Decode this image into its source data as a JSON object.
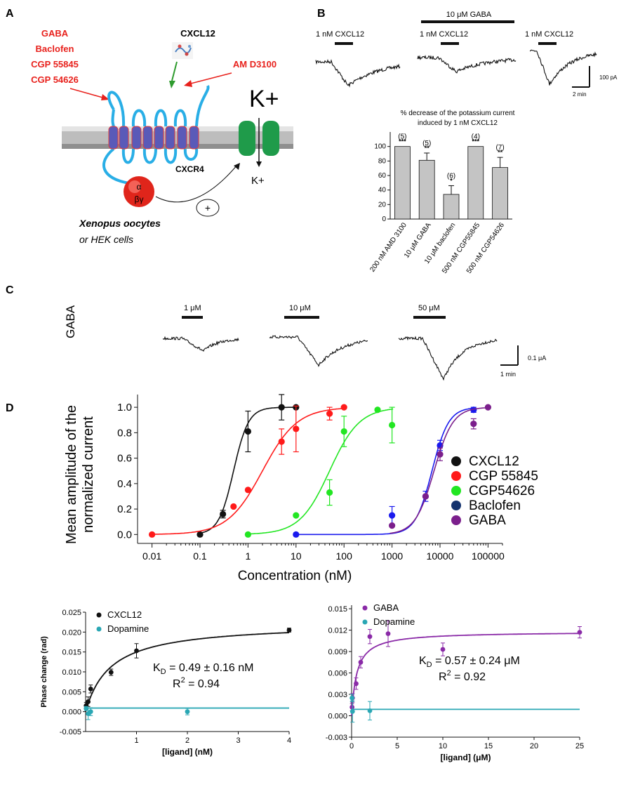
{
  "panel_labels": {
    "a": "A",
    "b": "B",
    "c": "C",
    "d": "D"
  },
  "panel_a": {
    "ligands": [
      "GABA",
      "Baclofen",
      "CGP 55845",
      "CGP 54626"
    ],
    "cxcl12": "CXCL12",
    "amd": "AM D3100",
    "k_plus_large": "K+",
    "k_plus_small": "K+",
    "receptor": "CXCR4",
    "g_alpha": "α",
    "g_betagamma": "βγ",
    "plus": "+",
    "cells_line1": "Xenopus oocytes",
    "cells_line2": "or HEK cells",
    "colors": {
      "ligand_text": "#e8211c",
      "membrane": "#b6b6b6",
      "receptor": "#29aee6",
      "channel": "#1f9b4a",
      "gprotein": "#e0251b"
    }
  },
  "panel_b": {
    "trace_label_1": "1 nM CXCL12",
    "trace_label_2": "1 nM CXCL12",
    "trace_label_3": "1 nM CXCL12",
    "gaba_bar_label": "10  μM GABA",
    "scale_y": "100 pA",
    "scale_x": "2 min"
  },
  "panel_c": {
    "side_label": "GABA",
    "doses": [
      "1 μM",
      "10  μM",
      "50  μM"
    ],
    "scale_y": "0.1 μA",
    "scale_x": "1 min"
  },
  "chart_data": [
    {
      "id": "b_bar",
      "type": "bar",
      "title": "% decrease of the potassium current induced by 1 nM CXCL12",
      "categories": [
        "200 nM AMD 3100",
        "10 μM GABA",
        "10 μM baclofen",
        "500 nM CGP55845",
        "500 nM CGP54626"
      ],
      "values": [
        100,
        81,
        34,
        100,
        71
      ],
      "errors": [
        0,
        10,
        12,
        0,
        14
      ],
      "n_labels": [
        "(5)",
        "(5)",
        "(6)",
        "(4)",
        "(7)"
      ],
      "significance": [
        "***",
        "**",
        "*",
        "***",
        "**"
      ],
      "yticks": [
        "0",
        "20",
        "40",
        "60",
        "80",
        "100"
      ],
      "ylim": [
        0,
        120
      ],
      "bar_color": "#c4c4c4"
    },
    {
      "id": "d_dose",
      "type": "scatter",
      "xscale": "log",
      "ylabel_line1": "Mean amplitude of the",
      "ylabel_line2": "normalized current",
      "xlabel": "Concentration (nM)",
      "xticks": [
        "0.01",
        "0.1",
        "1",
        "10",
        "100",
        "1000",
        "10000",
        "100000"
      ],
      "yticks": [
        "0.0",
        "0.2",
        "0.4",
        "0.6",
        "0.8",
        "1.0"
      ],
      "xlim": [
        0.005,
        200000
      ],
      "ylim": [
        -0.07,
        1.1
      ],
      "legend_position": "right",
      "series": [
        {
          "name": "CXCL12",
          "color": "#111111",
          "x": [
            0.1,
            0.3,
            1,
            5,
            10
          ],
          "y": [
            0.0,
            0.16,
            0.81,
            1.0,
            1.0
          ],
          "err": [
            0,
            0.03,
            0.16,
            0.1,
            0
          ],
          "ec50": 0.5,
          "hill": 2.8
        },
        {
          "name": "CGP 55845",
          "color": "#ff1a1a",
          "x": [
            0.01,
            0.5,
            1,
            5,
            10,
            50,
            100
          ],
          "y": [
            0.0,
            0.22,
            0.35,
            0.73,
            0.83,
            0.95,
            1.0
          ],
          "err": [
            0,
            0,
            0,
            0.1,
            0.18,
            0.05,
            0
          ],
          "ec50": 2.0,
          "hill": 1.2
        },
        {
          "name": "CGP54626",
          "color": "#22e622",
          "x": [
            1,
            10,
            50,
            100,
            500,
            1000
          ],
          "y": [
            0.0,
            0.15,
            0.33,
            0.81,
            0.98,
            0.86
          ],
          "err": [
            0,
            0,
            0.1,
            0.12,
            0,
            0.14
          ],
          "ec50": 50,
          "hill": 1.4
        },
        {
          "name": "Baclofen",
          "color": "#1a1aee",
          "legend_color": "#14336e",
          "x": [
            10,
            1000,
            5000,
            10000,
            50000
          ],
          "y": [
            0.0,
            0.15,
            0.3,
            0.7,
            0.98
          ],
          "err": [
            0,
            0.07,
            0.04,
            0.04,
            0.02
          ],
          "ec50": 6800,
          "hill": 2.5
        },
        {
          "name": "GABA",
          "color": "#7b1f8c",
          "x": [
            1000,
            5000,
            10000,
            50000,
            100000
          ],
          "y": [
            0.07,
            0.3,
            0.63,
            0.87,
            1.0
          ],
          "err": [
            0,
            0,
            0.05,
            0.04,
            0
          ],
          "ec50": 7500,
          "hill": 2.2
        }
      ]
    },
    {
      "id": "e_left",
      "type": "scatter",
      "ylabel": "Phase change (rad)",
      "xlabel": "[ligand] (nM)",
      "xticks": [
        "1",
        "2",
        "3",
        "4"
      ],
      "yticks": [
        "-0.005",
        "0.000",
        "0.005",
        "0.010",
        "0.015",
        "0.020",
        "0.025"
      ],
      "xlim": [
        0,
        4
      ],
      "ylim": [
        -0.005,
        0.025
      ],
      "kd_text": "K",
      "kd_sub": "D",
      "kd_value": " = 0.49 ± 0.16 nM",
      "r2_base": "R",
      "r2_sup": "2",
      "r2_value": " = 0.94",
      "fit": {
        "bmax": 0.0223,
        "kd": 0.49
      },
      "series": [
        {
          "name": "CXCL12",
          "color": "#111111",
          "x": [
            0.01,
            0.05,
            0.1,
            0.5,
            1,
            4
          ],
          "y": [
            0.0015,
            0.0025,
            0.0057,
            0.0099,
            0.0153,
            0.0205
          ],
          "err": [
            0.0008,
            0.0012,
            0.001,
            0.0008,
            0.0018,
            0.0005
          ]
        },
        {
          "name": "Dopamine",
          "color": "#2aa7b4",
          "x": [
            0.01,
            0.05,
            0.1,
            2
          ],
          "y": [
            0.0008,
            -0.0005,
            0.0,
            0.0
          ],
          "err": [
            0.0005,
            0.0015,
            0.001,
            0.0008
          ],
          "flat": 0.0009
        }
      ]
    },
    {
      "id": "e_right",
      "type": "scatter",
      "ylabel": "",
      "xlabel": "[ligand] (μM)",
      "xticks": [
        "0",
        "5",
        "10",
        "15",
        "20",
        "25"
      ],
      "yticks": [
        "-0.003",
        "0.000",
        "0.003",
        "0.006",
        "0.009",
        "0.012",
        "0.015"
      ],
      "xlim": [
        0,
        25
      ],
      "ylim": [
        -0.003,
        0.0155
      ],
      "kd_text": "K",
      "kd_sub": "D",
      "kd_value": " = 0.57 ± 0.24 μM",
      "r2_base": "R",
      "r2_sup": "2",
      "r2_value": " = 0.92",
      "fit": {
        "bmax": 0.0118,
        "kd": 0.57
      },
      "series": [
        {
          "name": "GABA",
          "color": "#8a2aa7",
          "x": [
            0.05,
            0.1,
            0.5,
            1,
            2,
            4,
            10,
            25
          ],
          "y": [
            0.0012,
            0.0025,
            0.0045,
            0.0075,
            0.0111,
            0.0115,
            0.0093,
            0.0117
          ],
          "err": [
            0.0005,
            0.0006,
            0.0008,
            0.0008,
            0.001,
            0.0018,
            0.0009,
            0.0008
          ]
        },
        {
          "name": "Dopamine",
          "color": "#2aa7b4",
          "x": [
            0.05,
            0.1,
            2
          ],
          "y": [
            0.0025,
            0.0006,
            0.0007
          ],
          "err": [
            0.0005,
            0.0015,
            0.0013
          ],
          "flat": 0.0009
        }
      ]
    }
  ]
}
